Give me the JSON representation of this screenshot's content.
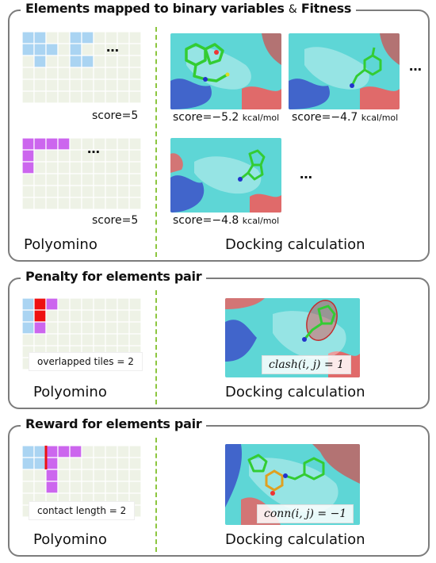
{
  "panels": {
    "top": {
      "title": "Elements mapped to binary variables",
      "title_amp": "&",
      "title_rest": "Fitness",
      "poly_score_1": "score=5",
      "poly_score_2": "score=5",
      "dock_score_1": "score=−5.2",
      "dock_score_2": "score=−4.7",
      "dock_score_3": "score=−4.8",
      "unit": "kcal/mol",
      "ellipsis": "…",
      "left_label": "Polyomino",
      "right_label": "Docking calculation"
    },
    "middle": {
      "title": "Penalty for elements pair",
      "tile_label": "overlapped tiles = 2",
      "equation": "clash(i, j) = 1",
      "left_label": "Polyomino",
      "right_label": "Docking calculation"
    },
    "bottom": {
      "title": "Reward for elements pair",
      "tile_label": "contact length = 2",
      "equation": "conn(i, j) = −1",
      "left_label": "Polyomino",
      "right_label": "Docking calculation"
    }
  },
  "colors": {
    "grid_bg": "#eef2e6",
    "grid_line": "#ffffff",
    "blue_tile": "#aad4f2",
    "purple_tile": "#cc66ee",
    "red_tile": "#ee1111",
    "divider": "#8cc63f",
    "protein": "#5ed6d6",
    "ligand": "#33cc33"
  },
  "icons": [
    "molecule-render-image",
    "clash-ellipse-icon"
  ]
}
